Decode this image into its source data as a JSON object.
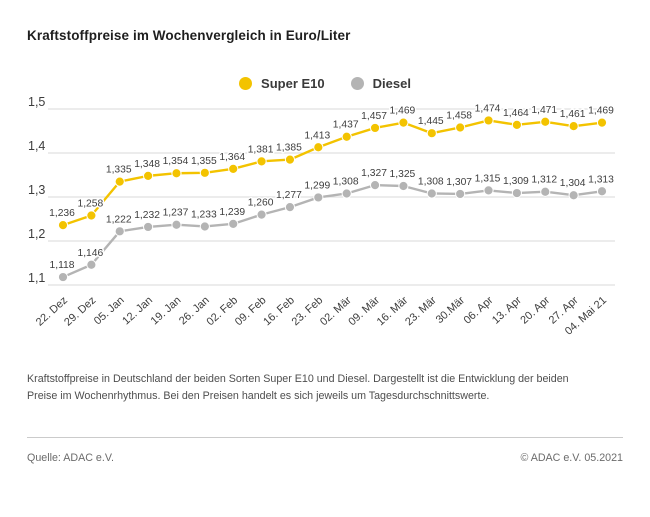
{
  "page": {
    "title": "Kraftstoffpreise im Wochenvergleich in Euro/Liter"
  },
  "legend": {
    "items": [
      {
        "label": "Super E10",
        "color": "#f3c300"
      },
      {
        "label": "Diesel",
        "color": "#b4b4b4"
      }
    ]
  },
  "chart_data": {
    "type": "line",
    "title": "Kraftstoffpreise im Wochenvergleich in Euro/Liter",
    "xlabel": "",
    "ylabel": "Euro/Liter",
    "categories": [
      "22. Dez",
      "29. Dez",
      "05. Jan",
      "12. Jan",
      "19. Jan",
      "26. Jan",
      "02. Feb",
      "09. Feb",
      "16. Feb",
      "23. Feb",
      "02. Mär",
      "09. Mär",
      "16. Mär",
      "23. Mär",
      "30.Mär",
      "06. Apr",
      "13. Apr",
      "20. Apr",
      "27. Apr",
      "04. Mai 21"
    ],
    "series": [
      {
        "name": "Super E10",
        "color": "#f3c300",
        "values": [
          1.236,
          1.258,
          1.335,
          1.348,
          1.354,
          1.355,
          1.364,
          1.381,
          1.385,
          1.413,
          1.437,
          1.457,
          1.469,
          1.445,
          1.458,
          1.474,
          1.464,
          1.471,
          1.461,
          1.469
        ]
      },
      {
        "name": "Diesel",
        "color": "#b4b4b4",
        "values": [
          1.118,
          1.146,
          1.222,
          1.232,
          1.237,
          1.233,
          1.239,
          1.26,
          1.277,
          1.299,
          1.308,
          1.327,
          1.325,
          1.308,
          1.307,
          1.315,
          1.309,
          1.312,
          1.304,
          1.313
        ]
      }
    ],
    "ylim": [
      1.1,
      1.5
    ],
    "yticks": [
      1.1,
      1.2,
      1.3,
      1.4,
      1.5
    ],
    "ytick_labels": [
      "1,1",
      "1,2",
      "1,3",
      "1,4",
      "1,5"
    ],
    "grid": true,
    "legend_position": "top-center",
    "value_labels": true,
    "decimal_separator": ",",
    "colors": {
      "grid": "#dadada",
      "axis_text": "#3d3d3d",
      "value_label_text": "#3e3e3e"
    }
  },
  "footer": {
    "description": "Kraftstoffpreise in Deutschland der beiden Sorten Super E10 und Diesel. Dargestellt ist die Entwicklung der beiden Preise im Wochenrhythmus. Bei den Preisen handelt es sich jeweils um Tagesdurchschnittswerte.",
    "source_left": "Quelle: ADAC e.V.",
    "source_right": "© ADAC e.V. 05.2021"
  }
}
